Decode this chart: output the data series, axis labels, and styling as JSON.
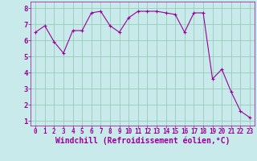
{
  "x": [
    0,
    1,
    2,
    3,
    4,
    5,
    6,
    7,
    8,
    9,
    10,
    11,
    12,
    13,
    14,
    15,
    16,
    17,
    18,
    19,
    20,
    21,
    22,
    23
  ],
  "y": [
    6.5,
    6.9,
    5.9,
    5.2,
    6.6,
    6.6,
    7.7,
    7.8,
    6.9,
    6.5,
    7.4,
    7.8,
    7.8,
    7.8,
    7.7,
    7.6,
    6.5,
    7.7,
    7.7,
    3.6,
    4.2,
    2.8,
    1.6,
    1.2
  ],
  "line_color": "#990099",
  "marker": "+",
  "marker_size": 3,
  "bg_color": "#c8eaea",
  "grid_color": "#99ccbb",
  "xlabel": "Windchill (Refroidissement éolien,°C)",
  "xlabel_color": "#990099",
  "ylabel_ticks": [
    1,
    2,
    3,
    4,
    5,
    6,
    7,
    8
  ],
  "xtick_labels": [
    "0",
    "1",
    "2",
    "3",
    "4",
    "5",
    "6",
    "7",
    "8",
    "9",
    "10",
    "11",
    "12",
    "13",
    "14",
    "15",
    "16",
    "17",
    "18",
    "19",
    "20",
    "21",
    "22",
    "23"
  ],
  "ylim": [
    0.7,
    8.4
  ],
  "xlim": [
    -0.5,
    23.5
  ],
  "tick_color": "#990099",
  "tick_fontsize": 5.5,
  "xlabel_fontsize": 7.0,
  "axis_color": "#990099",
  "line_width": 0.8
}
